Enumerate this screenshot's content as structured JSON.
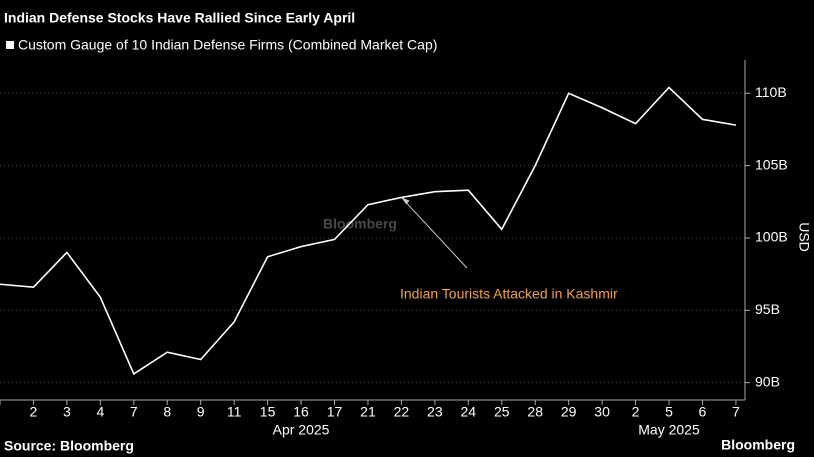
{
  "chart_data": {
    "type": "line",
    "title": "Indian Defense Stocks Have Rallied Since Early April",
    "watermark": "Bloomberg",
    "categories": [
      null,
      "2",
      "3",
      "4",
      "7",
      "8",
      "9",
      "11",
      "15",
      "16",
      "17",
      "21",
      "22",
      "23",
      "24",
      "25",
      "28",
      "29",
      "30",
      "2",
      "5",
      "6",
      "7"
    ],
    "month_labels": [
      null,
      null,
      null,
      null,
      null,
      null,
      null,
      null,
      null,
      "Apr 2025",
      null,
      null,
      null,
      null,
      null,
      null,
      null,
      null,
      null,
      null,
      "May 2025",
      null,
      null
    ],
    "series": [
      {
        "name": "Custom Gauge of 10 Indian Defense Firms (Combined Market Cap)",
        "color": "#ffffff",
        "values": [
          96.8,
          96.6,
          99.0,
          95.9,
          90.6,
          92.1,
          91.6,
          94.2,
          98.7,
          99.4,
          99.9,
          102.3,
          102.8,
          103.2,
          103.3,
          100.6,
          105.0,
          110.0,
          109.0,
          107.9,
          110.4,
          108.2,
          107.8
        ]
      }
    ],
    "ylabel": "USD",
    "ylim": [
      88.8,
      112.3
    ],
    "yticks": [
      {
        "value": 90,
        "label": "90B"
      },
      {
        "value": 95,
        "label": "95B"
      },
      {
        "value": 100,
        "label": "100B"
      },
      {
        "value": 105,
        "label": "105B"
      },
      {
        "value": 110,
        "label": "110B"
      }
    ],
    "grid": true,
    "annotation": {
      "text": "Indian Tourists Attacked in Kashmir",
      "color": "#f0a23c",
      "category_index": 12
    },
    "source": "Source: Bloomberg",
    "logo": "Bloomberg"
  }
}
